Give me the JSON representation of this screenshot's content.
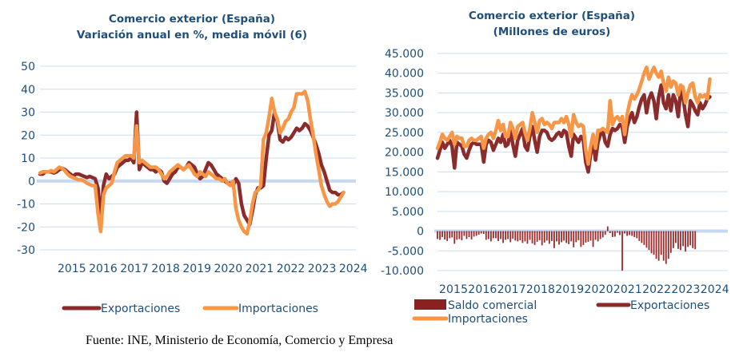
{
  "source_note": "Fuente: INE, Ministerio de Economía, Comercio y Empresa",
  "colors": {
    "exports": "#8b2b2b",
    "imports": "#f79646",
    "grid": "#c9dcf0",
    "zero_axis": "#c6d9f1",
    "text": "#1f4e79"
  },
  "chart_data": [
    {
      "type": "line",
      "title": "Comercio exterior  (España)",
      "subtitle": "Variación anual en %, media móvil (6)",
      "xlabel": "",
      "ylabel": "",
      "ylim": [
        -30,
        50
      ],
      "yticks": [
        "50",
        "40",
        "30",
        "20",
        "10",
        "0",
        "-10",
        "-20",
        "-30"
      ],
      "ytick_values": [
        50,
        40,
        30,
        20,
        10,
        0,
        -10,
        -20,
        -30
      ],
      "xticks": [
        "2015",
        "2016",
        "2017",
        "2018",
        "2019",
        "2020",
        "2021",
        "2022",
        "2023",
        "2024"
      ],
      "x_start": "2015-01",
      "frequency": "monthly",
      "grid": true,
      "legend": "bottom",
      "series": [
        {
          "name": "Exportaciones",
          "values": [
            3,
            3,
            4,
            4,
            4,
            3.5,
            4,
            5,
            5.5,
            5,
            4,
            3,
            2,
            3,
            3,
            2.5,
            2,
            1.5,
            2,
            1.5,
            1,
            -3,
            -16,
            -2,
            3,
            1,
            2,
            3,
            6,
            7,
            8,
            9,
            9,
            10,
            8,
            30,
            5,
            8,
            7,
            6,
            5,
            5,
            4,
            5,
            4,
            0,
            -1,
            1,
            3,
            4,
            6,
            6,
            5,
            6,
            8,
            7,
            6,
            3,
            1,
            2,
            5,
            8,
            7,
            5,
            3,
            2,
            1,
            0,
            -1,
            -1,
            -2,
            1,
            -1,
            -10,
            -15,
            -17,
            -19,
            -13,
            -6,
            -3,
            -3,
            -2,
            10,
            20,
            22,
            30,
            26,
            18,
            17,
            19,
            18,
            19,
            21,
            23,
            22,
            23,
            25,
            24,
            22,
            19,
            16,
            12,
            7,
            4,
            0,
            -4,
            -5,
            -5,
            -6,
            -6,
            -5
          ]
        },
        {
          "name": "Importaciones",
          "values": [
            3.5,
            4,
            4,
            4,
            4.5,
            4,
            5,
            6,
            5.5,
            4.5,
            3,
            2,
            1.5,
            1,
            0.5,
            0.5,
            0,
            -1,
            -1.5,
            -2,
            -2,
            -14,
            -22,
            -6,
            -3,
            -2,
            -1,
            4,
            8,
            9,
            10,
            11,
            11,
            11,
            10,
            24,
            8,
            9,
            8,
            7,
            6,
            6,
            6,
            5,
            3,
            1,
            2,
            4,
            5,
            6,
            7,
            6,
            5,
            6,
            7,
            5,
            3,
            2,
            4,
            3,
            2,
            4,
            3,
            2,
            1,
            1,
            0,
            1,
            -1,
            -2,
            0,
            -12,
            -17,
            -20,
            -22,
            -23,
            -18,
            -10,
            -5,
            -4,
            -2,
            18,
            21,
            28,
            36,
            30,
            27,
            21,
            23,
            26,
            27,
            30,
            32,
            38,
            38,
            38,
            39,
            35,
            27,
            20,
            12,
            5,
            -2,
            -6,
            -9,
            -11,
            -10,
            -10,
            -9,
            -7,
            -5
          ]
        }
      ]
    },
    {
      "type": "line",
      "title": "Comercio exterior  (España)",
      "subtitle": "(Millones de euros)",
      "xlabel": "",
      "ylabel": "",
      "ylim": [
        -10000,
        45000
      ],
      "yticks": [
        "45.000",
        "40.000",
        "35.000",
        "30.000",
        "25.000",
        "20.000",
        "15.000",
        "10.000",
        "5.000",
        "0",
        "-5.000",
        "-10.000"
      ],
      "ytick_values": [
        45000,
        40000,
        35000,
        30000,
        25000,
        20000,
        15000,
        10000,
        5000,
        0,
        -5000,
        -10000
      ],
      "xticks": [
        "2015",
        "2016",
        "2017",
        "2018",
        "2019",
        "2020",
        "2021",
        "2022",
        "2023",
        "2024"
      ],
      "x_start": "2015-01",
      "frequency": "monthly",
      "grid": true,
      "legend": "bottom",
      "series": [
        {
          "name": "Saldo comercial",
          "kind": "bar",
          "values": [
            -2000,
            -2200,
            -1500,
            -2100,
            -2500,
            -1800,
            -1600,
            -3200,
            -2200,
            -2000,
            -2300,
            -1200,
            -2000,
            -1500,
            -2100,
            -1400,
            -1200,
            -900,
            -600,
            -700,
            -2200,
            -2000,
            -2600,
            -1800,
            -1800,
            -2500,
            -2000,
            -3000,
            -2200,
            -2000,
            -2800,
            -1900,
            -2400,
            -2600,
            -2300,
            -3000,
            -2600,
            -3200,
            -2200,
            -3100,
            -3500,
            -2700,
            -2300,
            -3600,
            -2900,
            -2400,
            -3200,
            -2500,
            -4300,
            -2600,
            -3400,
            -2800,
            -2400,
            -3000,
            -3300,
            -2600,
            -4100,
            -2800,
            -2300,
            -4000,
            -3500,
            -2900,
            -2700,
            -2400,
            -4000,
            -2200,
            -2600,
            -2000,
            -1600,
            -900,
            1200,
            -500,
            -1500,
            -1400,
            -400,
            -1000,
            -10000,
            -600,
            -1200,
            -1000,
            -1200,
            -1500,
            -1800,
            -2500,
            -3000,
            -3500,
            -4200,
            -4800,
            -5600,
            -6000,
            -7000,
            -7500,
            -6000,
            -7500,
            -8300,
            -7000,
            -5500,
            -4300,
            -3000,
            -4500,
            -4800,
            -3800,
            -5200,
            -4000,
            -3600,
            -4300,
            -4600
          ]
        },
        {
          "name": "Exportaciones",
          "values": [
            18500,
            20500,
            22500,
            21000,
            22000,
            23000,
            21500,
            16000,
            22500,
            22000,
            21500,
            19500,
            18500,
            20500,
            22000,
            22500,
            22000,
            22000,
            22000,
            17500,
            22000,
            23000,
            22500,
            20500,
            22000,
            23500,
            22500,
            24500,
            21500,
            22000,
            25500,
            22000,
            19000,
            23000,
            24500,
            26000,
            21500,
            20500,
            24000,
            26500,
            23000,
            20000,
            24000,
            25500,
            25500,
            25000,
            23500,
            23000,
            23500,
            24500,
            25000,
            24000,
            25500,
            25000,
            21500,
            19000,
            24500,
            23500,
            22500,
            24000,
            23000,
            17500,
            15000,
            19500,
            22500,
            18000,
            22500,
            24500,
            25500,
            22500,
            21500,
            24500,
            26000,
            25500,
            26000,
            27000,
            26500,
            22500,
            26500,
            28500,
            30000,
            27500,
            29000,
            31500,
            33500,
            34500,
            30000,
            33500,
            35000,
            33000,
            28500,
            34000,
            37000,
            32500,
            31000,
            34500,
            30500,
            34500,
            33000,
            29000,
            35500,
            34000,
            29500,
            26500,
            33000,
            32000,
            30500,
            29500,
            32500,
            31000,
            32000,
            33500,
            34000
          ]
        },
        {
          "name": "Importaciones",
          "values": [
            21000,
            22500,
            24500,
            23500,
            23000,
            24000,
            25000,
            22000,
            24000,
            23500,
            23500,
            21500,
            21500,
            23000,
            23500,
            23000,
            23000,
            23500,
            24000,
            21000,
            23500,
            24500,
            25000,
            23500,
            25500,
            28000,
            25500,
            27000,
            24000,
            24000,
            27500,
            26000,
            23500,
            26500,
            27000,
            27500,
            25000,
            23000,
            26000,
            30000,
            27500,
            25000,
            28000,
            28500,
            27000,
            27500,
            27000,
            26000,
            27500,
            27500,
            27500,
            28500,
            27500,
            29000,
            27000,
            24000,
            29500,
            27500,
            26500,
            27000,
            26500,
            20500,
            17000,
            21500,
            24500,
            21000,
            25500,
            25500,
            26000,
            25500,
            25000,
            33000,
            27000,
            28500,
            29000,
            28000,
            29000,
            24500,
            29500,
            32500,
            34500,
            33500,
            34500,
            36000,
            38000,
            40000,
            41500,
            38500,
            40000,
            41500,
            40000,
            39000,
            40500,
            37500,
            35500,
            39000,
            36500,
            38000,
            37500,
            34500,
            37000,
            36500,
            32500,
            35000,
            37000,
            37500,
            34000,
            32500,
            34500,
            34000,
            34500,
            33500,
            38500
          ]
        }
      ]
    }
  ]
}
